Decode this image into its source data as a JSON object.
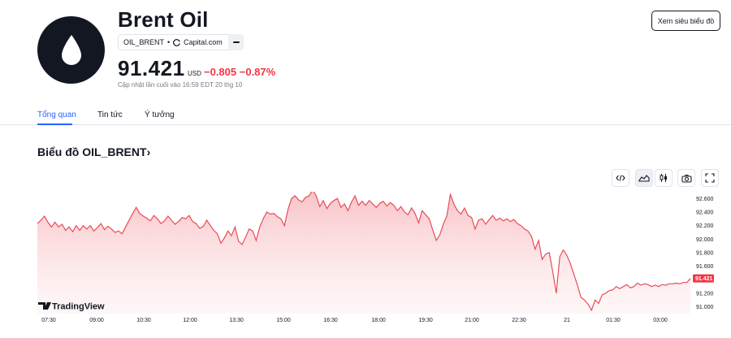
{
  "header": {
    "title": "Brent Oil",
    "symbol": "OIL_BRENT",
    "source": "Capital.com",
    "price": "91.421",
    "currency": "USD",
    "change": "−0.805",
    "change_percent": "−0.87%",
    "updated": "Cập nhật lần cuối vào 16:59 EDT 20 thg 10",
    "view_chart_label": "Xem siêu biểu đồ"
  },
  "tabs": [
    {
      "label": "Tổng quan",
      "active": true
    },
    {
      "label": "Tin tức",
      "active": false
    },
    {
      "label": "Ý tưởng",
      "active": false
    }
  ],
  "section_title": "Biểu đồ OIL_BRENT",
  "colors": {
    "accent": "#2962ff",
    "negative": "#f23645",
    "line": "#e84c57",
    "fill": "#fbdadc"
  },
  "branding": "TradingView",
  "chart_data": {
    "type": "area",
    "xlabels": [
      "07:30",
      "09:00",
      "10:30",
      "12:00",
      "13:30",
      "15:00",
      "16:30",
      "18:00",
      "19:30",
      "21:00",
      "22:30",
      "21",
      "01:30",
      "03:00"
    ],
    "ylabels": [
      "92.600",
      "92.400",
      "92.200",
      "92.000",
      "91.800",
      "91.600",
      "91.400",
      "91.200",
      "91.000"
    ],
    "ylim": [
      90.9,
      92.7
    ],
    "last_value": "91.421",
    "values": [
      92.23,
      92.28,
      92.34,
      92.25,
      92.18,
      92.25,
      92.18,
      92.22,
      92.13,
      92.18,
      92.11,
      92.2,
      92.13,
      92.2,
      92.15,
      92.2,
      92.12,
      92.17,
      92.23,
      92.14,
      92.19,
      92.15,
      92.1,
      92.12,
      92.08,
      92.18,
      92.28,
      92.38,
      92.47,
      92.38,
      92.34,
      92.31,
      92.27,
      92.35,
      92.3,
      92.23,
      92.27,
      92.34,
      92.28,
      92.22,
      92.26,
      92.32,
      92.3,
      92.35,
      92.26,
      92.23,
      92.16,
      92.19,
      92.28,
      92.2,
      92.13,
      92.08,
      91.94,
      92.02,
      92.12,
      92.05,
      92.18,
      91.97,
      91.92,
      92.03,
      92.15,
      92.12,
      91.98,
      92.18,
      92.3,
      92.4,
      92.37,
      92.38,
      92.33,
      92.3,
      92.2,
      92.44,
      92.6,
      92.64,
      92.58,
      92.55,
      92.62,
      92.64,
      92.73,
      92.64,
      92.48,
      92.57,
      92.45,
      92.53,
      92.57,
      92.6,
      92.47,
      92.52,
      92.42,
      92.55,
      92.64,
      92.5,
      92.56,
      92.5,
      92.57,
      92.52,
      92.47,
      92.53,
      92.56,
      92.49,
      92.54,
      92.5,
      92.42,
      92.48,
      92.4,
      92.36,
      92.46,
      92.38,
      92.24,
      92.42,
      92.36,
      92.3,
      92.14,
      91.98,
      92.06,
      92.22,
      92.34,
      92.66,
      92.52,
      92.42,
      92.37,
      92.46,
      92.35,
      92.32,
      92.15,
      92.28,
      92.3,
      92.22,
      92.29,
      92.35,
      92.28,
      92.31,
      92.27,
      92.3,
      92.26,
      92.29,
      92.23,
      92.2,
      92.15,
      92.12,
      92.04,
      91.85,
      91.98,
      91.7,
      91.78,
      91.8,
      91.52,
      91.2,
      91.74,
      91.84,
      91.76,
      91.64,
      91.48,
      91.32,
      91.14,
      91.1,
      91.04,
      90.95,
      91.1,
      91.05,
      91.18,
      91.2,
      91.24,
      91.25,
      91.3,
      91.27,
      91.3,
      91.33,
      91.28,
      91.3,
      91.35,
      91.32,
      91.34,
      91.33,
      91.3,
      91.32,
      91.3,
      91.33,
      91.32,
      91.34,
      91.34,
      91.35,
      91.34,
      91.36,
      91.36,
      91.42
    ]
  }
}
